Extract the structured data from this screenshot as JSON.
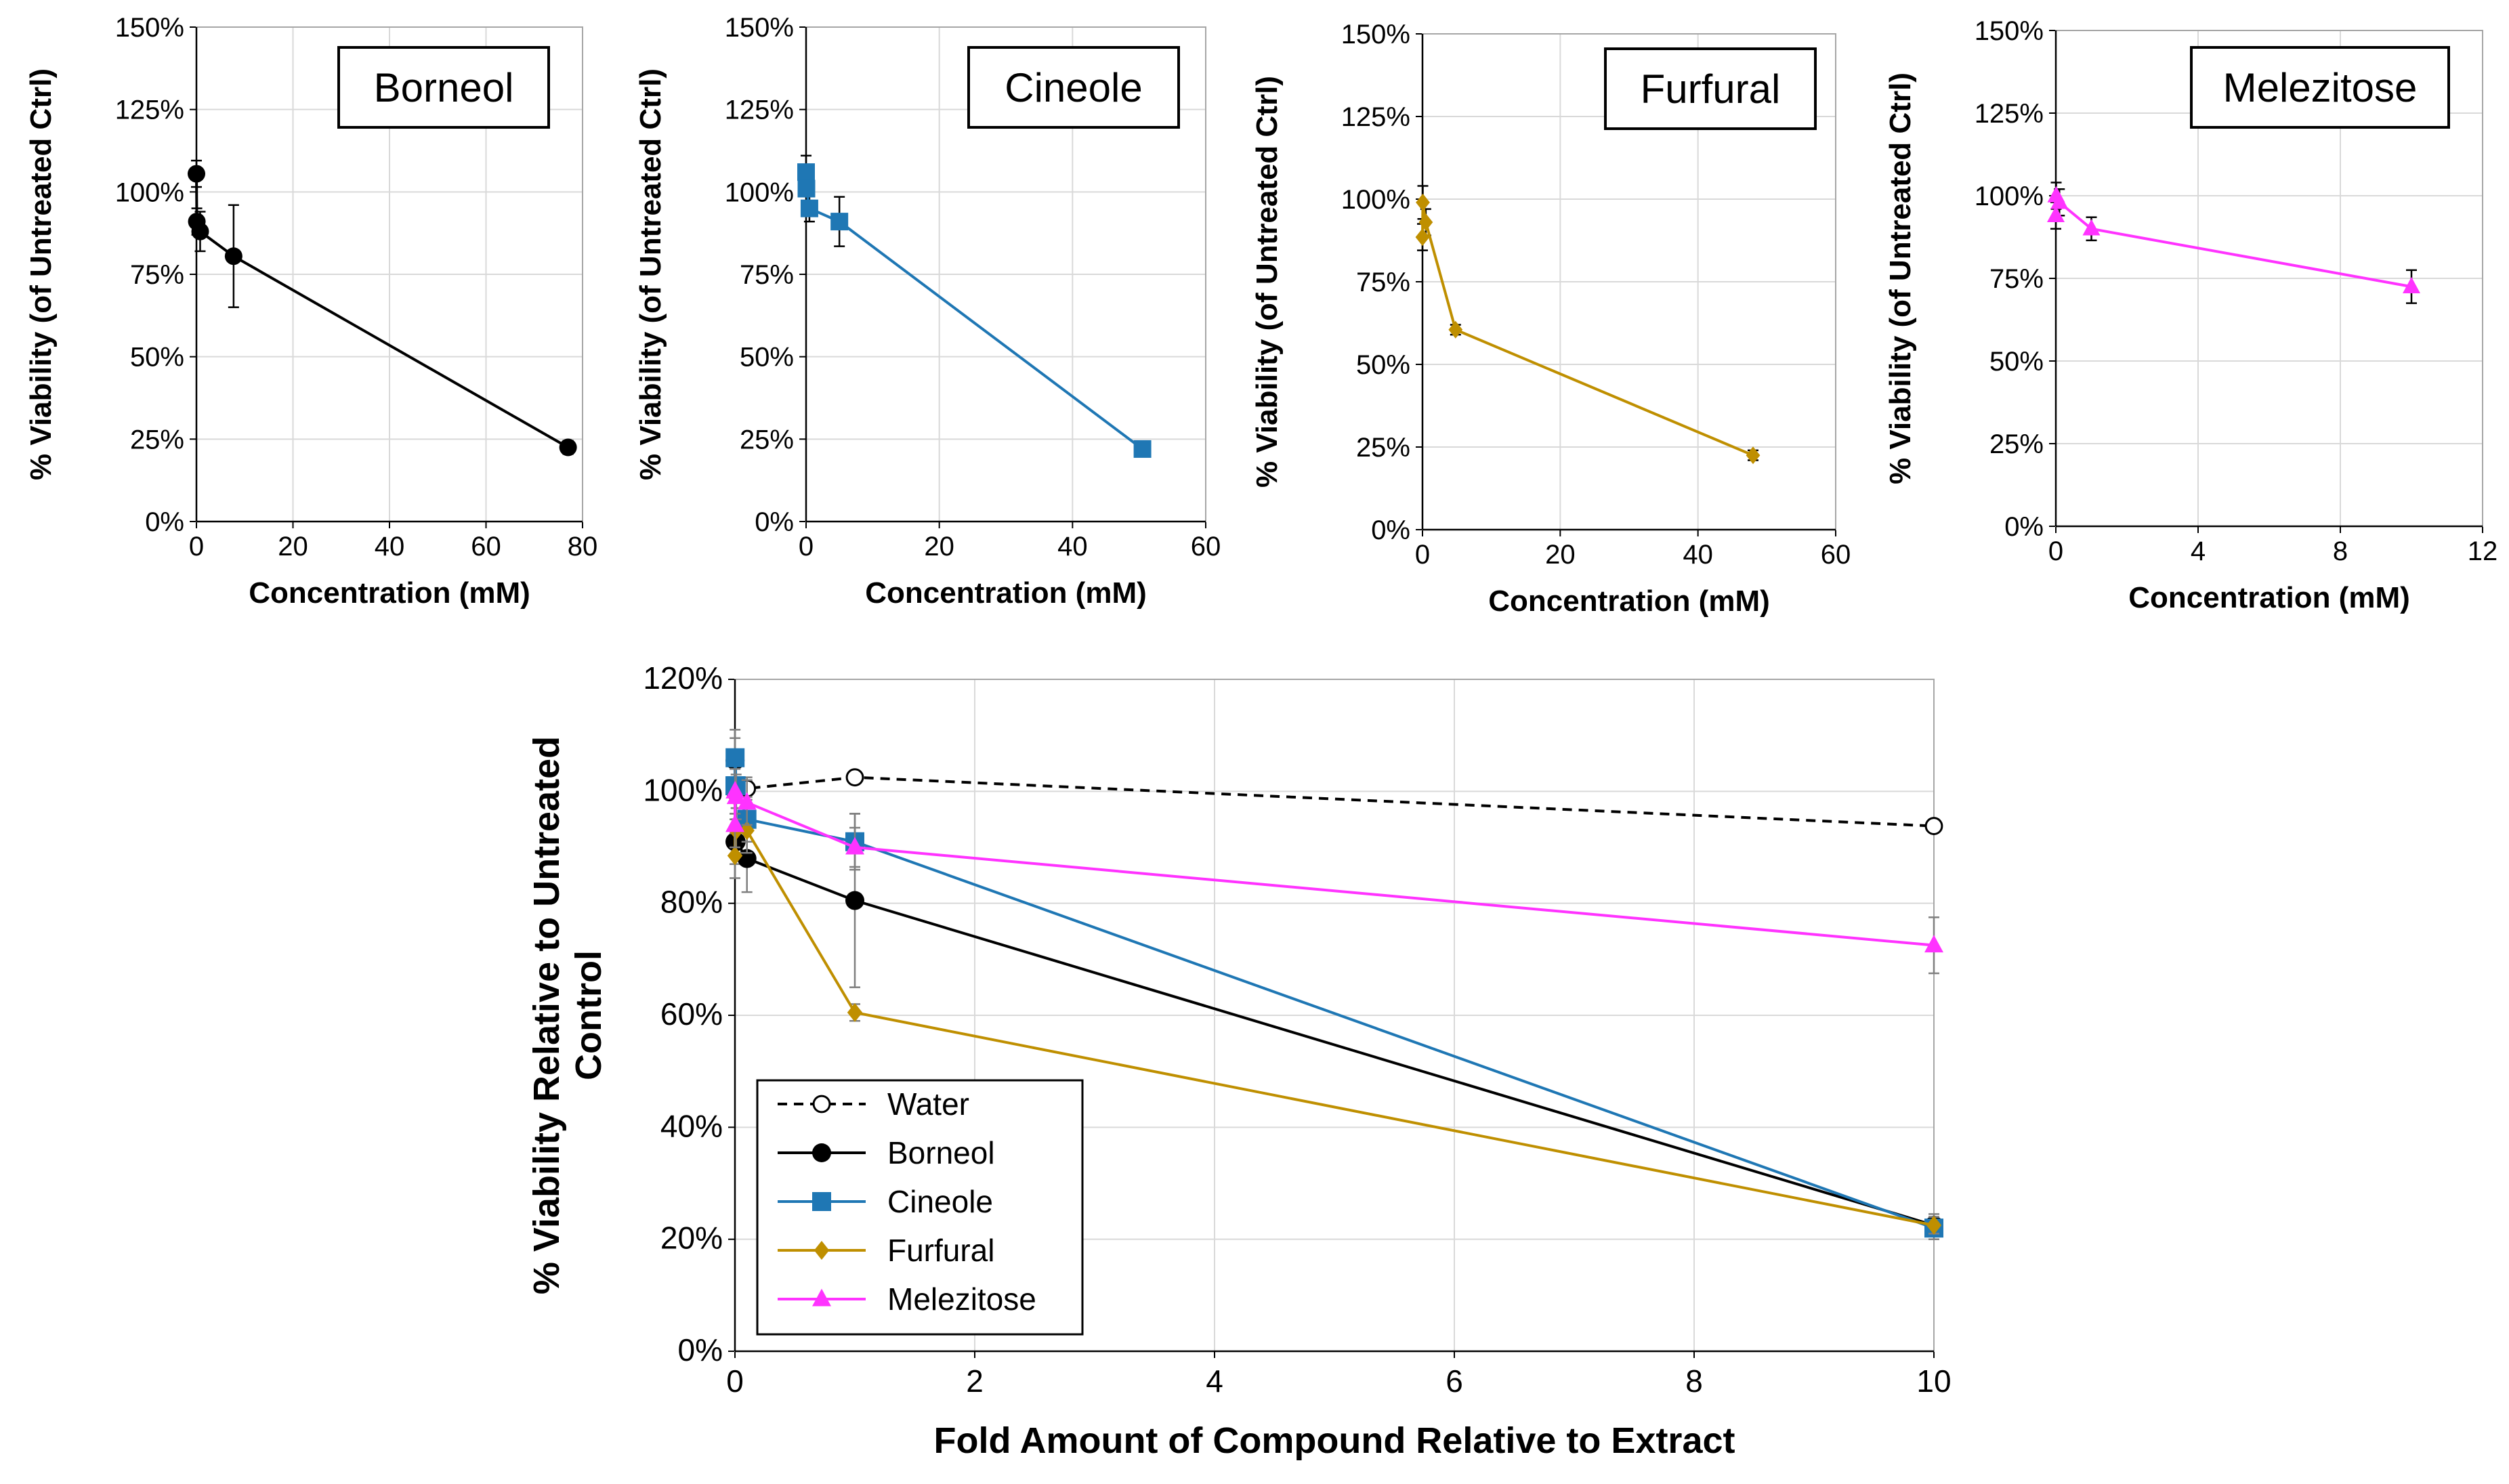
{
  "chart_data": [
    {
      "type": "scatter",
      "title": "Borneol",
      "xlabel": "Concentration (mM)",
      "ylabel": "% Viability (of Untreated Ctrl)",
      "xlim": [
        0,
        80
      ],
      "ylim": [
        0,
        150
      ],
      "xticks": [
        "0",
        "20",
        "40",
        "60",
        "80"
      ],
      "yticks": [
        "0%",
        "25%",
        "50%",
        "75%",
        "100%",
        "125%",
        "150%"
      ],
      "grid": true,
      "color": "#000000",
      "marker": "circle",
      "series": [
        {
          "x": [
            0,
            0.08,
            0.77,
            7.7,
            77
          ],
          "y": [
            105.5,
            91,
            88,
            80.5,
            22.5
          ],
          "err": [
            4,
            4,
            6,
            15.5,
            2
          ]
        }
      ]
    },
    {
      "type": "scatter",
      "title": "Cineole",
      "xlabel": "Concentration (mM)",
      "ylabel": "% Viability (of Untreated Ctrl)",
      "xlim": [
        0,
        60
      ],
      "ylim": [
        0,
        150
      ],
      "xticks": [
        "0",
        "20",
        "40",
        "60"
      ],
      "yticks": [
        "0%",
        "25%",
        "50%",
        "75%",
        "100%",
        "125%",
        "150%"
      ],
      "grid": true,
      "color": "#1f77b4",
      "marker": "square",
      "series": [
        {
          "x": [
            0,
            0.05,
            0.5,
            5,
            50.5
          ],
          "y": [
            106,
            101,
            95,
            91,
            22
          ],
          "err": [
            5,
            4,
            4,
            7.5,
            2
          ]
        }
      ]
    },
    {
      "type": "scatter",
      "title": "Furfural",
      "xlabel": "Concentration (mM)",
      "ylabel": "% Viability (of Untreated Ctrl)",
      "xlim": [
        0,
        60
      ],
      "ylim": [
        0,
        150
      ],
      "xticks": [
        "0",
        "20",
        "40",
        "60"
      ],
      "yticks": [
        "0%",
        "25%",
        "50%",
        "75%",
        "100%",
        "125%",
        "150%"
      ],
      "grid": true,
      "color": "#bf8f00",
      "marker": "diamond",
      "series": [
        {
          "x": [
            0,
            0.05,
            0.48,
            4.8,
            48
          ],
          "y": [
            88.5,
            99,
            93,
            60.5,
            22.5
          ],
          "err": [
            4,
            5,
            4,
            1.5,
            1.5
          ]
        }
      ]
    },
    {
      "type": "scatter",
      "title": "Melezitose",
      "xlabel": "Concentration (mM)",
      "ylabel": "% Viability (of Untreated Ctrl)",
      "xlim": [
        0,
        12
      ],
      "ylim": [
        0,
        150
      ],
      "xticks": [
        "0",
        "4",
        "8",
        "12"
      ],
      "yticks": [
        "0%",
        "25%",
        "50%",
        "75%",
        "100%",
        "125%",
        "150%"
      ],
      "grid": true,
      "color": "#ff33ff",
      "marker": "triangle",
      "series": [
        {
          "x": [
            0,
            0.01,
            0.1,
            1,
            10
          ],
          "y": [
            94,
            100,
            98,
            90,
            72.5
          ],
          "err": [
            4,
            4,
            4,
            3.5,
            5
          ]
        }
      ]
    },
    {
      "type": "line",
      "xlabel": "Fold Amount of Compound Relative to Extract",
      "ylabel": "% Viability Relative to Untreated Control",
      "xlim": [
        0,
        10
      ],
      "ylim": [
        0,
        120
      ],
      "xticks": [
        "0",
        "2",
        "4",
        "6",
        "8",
        "10"
      ],
      "yticks": [
        "0%",
        "20%",
        "40%",
        "60%",
        "80%",
        "100%",
        "120%"
      ],
      "grid": true,
      "legend_position": "bottom-left",
      "series": [
        {
          "name": "Water",
          "color": "#000000",
          "marker": "open-circle",
          "dashed": true,
          "x": [
            0,
            0.1,
            1,
            10
          ],
          "y": [
            100,
            100.5,
            102.5,
            93.8
          ],
          "err": [
            0,
            2,
            0,
            0
          ]
        },
        {
          "name": "Borneol",
          "color": "#000000",
          "marker": "circle",
          "dashed": false,
          "x": [
            0,
            0.001,
            0.01,
            0.1,
            1,
            10
          ],
          "y": [
            91,
            105.5,
            91,
            88,
            80.5,
            22.5
          ],
          "err": [
            4,
            4,
            4,
            6,
            15.5,
            2
          ]
        },
        {
          "name": "Cineole",
          "color": "#1f77b4",
          "marker": "square",
          "dashed": false,
          "x": [
            0,
            0.001,
            0.01,
            0.1,
            1,
            10
          ],
          "y": [
            101,
            106,
            101,
            95,
            91,
            22
          ],
          "err": [
            5,
            5,
            4,
            4,
            5,
            2
          ]
        },
        {
          "name": "Furfural",
          "color": "#bf8f00",
          "marker": "diamond",
          "dashed": false,
          "x": [
            0,
            0.001,
            0.01,
            0.1,
            1,
            10
          ],
          "y": [
            88.5,
            99,
            93,
            93,
            60.5,
            22.5
          ],
          "err": [
            4,
            5,
            4,
            4,
            1.5,
            1.5
          ]
        },
        {
          "name": "Melezitose",
          "color": "#ff33ff",
          "marker": "triangle",
          "dashed": false,
          "x": [
            0,
            0.001,
            0.01,
            0.1,
            1,
            10
          ],
          "y": [
            94,
            100,
            99,
            98,
            90,
            72.5
          ],
          "err": [
            4,
            4,
            4,
            4,
            3.5,
            5
          ]
        }
      ]
    }
  ]
}
